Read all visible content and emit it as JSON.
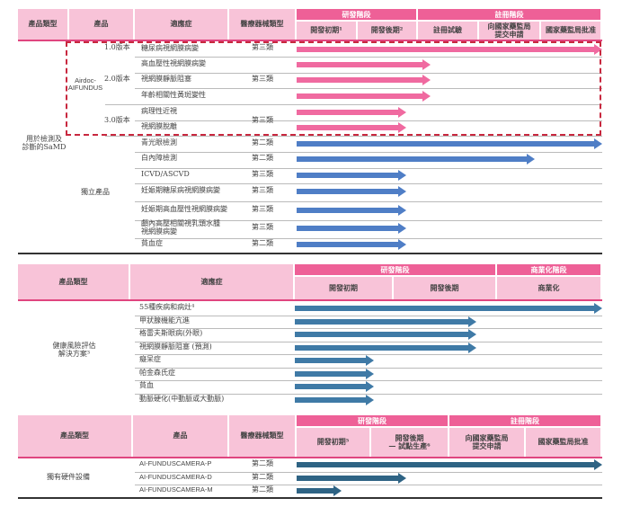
{
  "colors": {
    "header_bg": "#f8c3d8",
    "band_bg": "#ee6097",
    "pink_arrow": "#f06aa0",
    "blue_arrow": "#4f7ec6",
    "steel_arrow": "#3f7aa6",
    "dark_arrow": "#2e6384",
    "highlight_box": "#c8283f"
  },
  "table1": {
    "headers": {
      "type": "產品類型",
      "product": "產品",
      "indication": "適應症",
      "device_class": "醫療器械類型"
    },
    "bands": [
      "研發階段",
      "註冊階段"
    ],
    "phases": [
      "開發初期¹",
      "開發後期²",
      "註冊試驗",
      "向國家藥監局\n提交申請",
      "國家藥監局批准"
    ],
    "category": "用於檢測及\n診斷的SaMD",
    "product_airdoc": "Airdoc-\nAIFUNDUS",
    "product_standalone": "獨立產品",
    "versions": [
      "1.0版本",
      "2.0版本",
      "3.0版本"
    ],
    "class_labels": [
      "第三類",
      "第三類",
      "第三類"
    ],
    "rows": [
      {
        "indication": "糖尿病視網膜病變",
        "progress_phases": 5
      },
      {
        "indication": "高血壓性視網膜病變",
        "progress_phases": 2.2
      },
      {
        "indication": "視網膜靜脈阻塞",
        "progress_phases": 2.2
      },
      {
        "indication": "年齡相關性黃斑變性",
        "progress_phases": 2.2
      },
      {
        "indication": "病理性近視",
        "progress_phases": 1.8
      },
      {
        "indication": "視網膜脫離",
        "progress_phases": 1.8
      },
      {
        "indication": "青光眼檢測",
        "device_class": "第二類",
        "progress_phases": 5
      },
      {
        "indication": "白內障檢測",
        "device_class": "第二類",
        "progress_phases": 3.9
      },
      {
        "indication": "ICVD/ASCVD",
        "device_class": "第三類",
        "progress_phases": 1.8
      },
      {
        "indication": "妊娠期糖尿病視網膜病變",
        "device_class": "第三類",
        "progress_phases": 1.8
      },
      {
        "indication": "妊娠期高血壓性視網膜病變",
        "device_class": "第三類",
        "progress_phases": 1.8
      },
      {
        "indication": "顱內高壓相關視乳頭水腫\n視網膜病變",
        "device_class": "第三類",
        "progress_phases": 1.8
      },
      {
        "indication": "貧血症",
        "device_class": "第二類",
        "progress_phases": 1.8
      }
    ]
  },
  "table2": {
    "headers": {
      "type": "產品類型",
      "indication": "適應症"
    },
    "bands": [
      "研發階段",
      "商業化階段"
    ],
    "phases": [
      "開發初期",
      "開發後期",
      "商業化"
    ],
    "category": "健康風險評估\n解決方案³",
    "rows": [
      {
        "indication": "55種疾病和病灶⁴",
        "progress_phases": 3
      },
      {
        "indication": "甲狀腺機能亢進",
        "progress_phases": 1.8
      },
      {
        "indication": "格雷夫斯眼病(外眼)",
        "progress_phases": 1.8
      },
      {
        "indication": "視網膜靜脈阻塞 (預測)",
        "progress_phases": 1.8
      },
      {
        "indication": "癡呆症",
        "progress_phases": 0.8
      },
      {
        "indication": "帕金森氏症",
        "progress_phases": 0.8
      },
      {
        "indication": "貧血",
        "progress_phases": 0.8
      },
      {
        "indication": "動脈硬化(中動脈或大動脈)",
        "progress_phases": 0.8
      }
    ]
  },
  "table3": {
    "headers": {
      "type": "產品類型",
      "product": "產品",
      "device_class": "醫療器械類型"
    },
    "bands": [
      "研發階段",
      "註冊階段"
    ],
    "phases": [
      "開發初期⁵",
      "開發後期\n— 試點生產⁶",
      "向國家藥監局\n提交申請",
      "國家藥監局批准"
    ],
    "category": "獨有硬件設備",
    "rows": [
      {
        "product": "AI-FUNDUSCAMERA-P",
        "device_class": "第二類",
        "progress_phases": 4
      },
      {
        "product": "AI-FUNDUSCAMERA-D",
        "device_class": "第二類",
        "progress_phases": 1.45
      },
      {
        "product": "AI-FUNDUSCAMERA-M",
        "device_class": "第二類",
        "progress_phases": 0.6
      }
    ]
  }
}
